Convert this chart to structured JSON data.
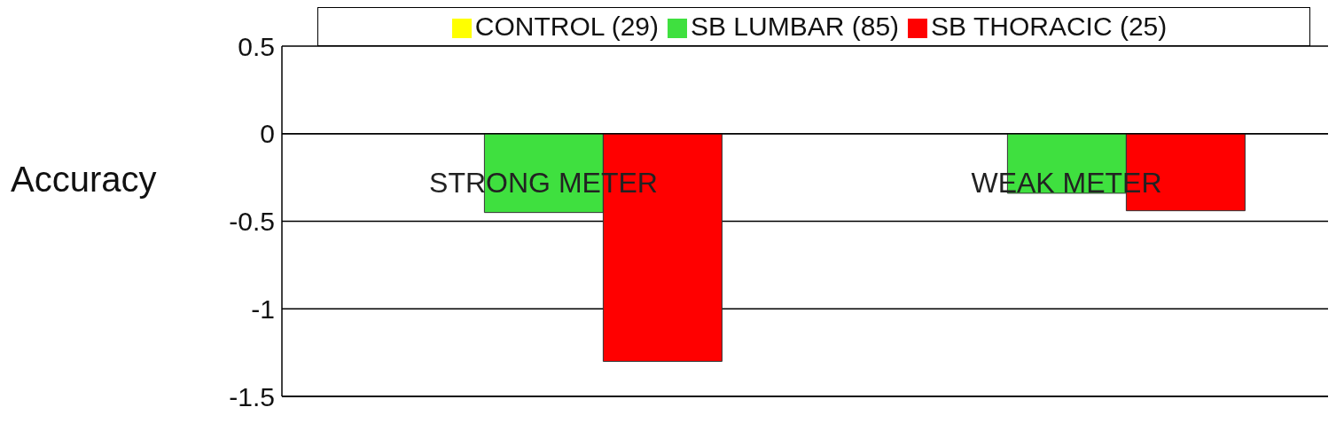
{
  "chart_data": {
    "type": "bar",
    "ylabel": "Accuracy",
    "categories": [
      "STRONG METER",
      "WEAK METER"
    ],
    "series": [
      {
        "name": "CONTROL (29)",
        "color": "#ffff00",
        "values": [
          0,
          0
        ]
      },
      {
        "name": "SB LUMBAR (85)",
        "color": "#3fe03f",
        "values": [
          -0.45,
          -0.34
        ]
      },
      {
        "name": "SB THORACIC (25)",
        "color": "#ff0000",
        "values": [
          -1.3,
          -0.44
        ]
      }
    ],
    "ylim": [
      -1.5,
      0.5
    ],
    "yticks": [
      -1.5,
      -1,
      -0.5,
      0,
      0.5
    ],
    "grid": "y",
    "legend": "top"
  }
}
